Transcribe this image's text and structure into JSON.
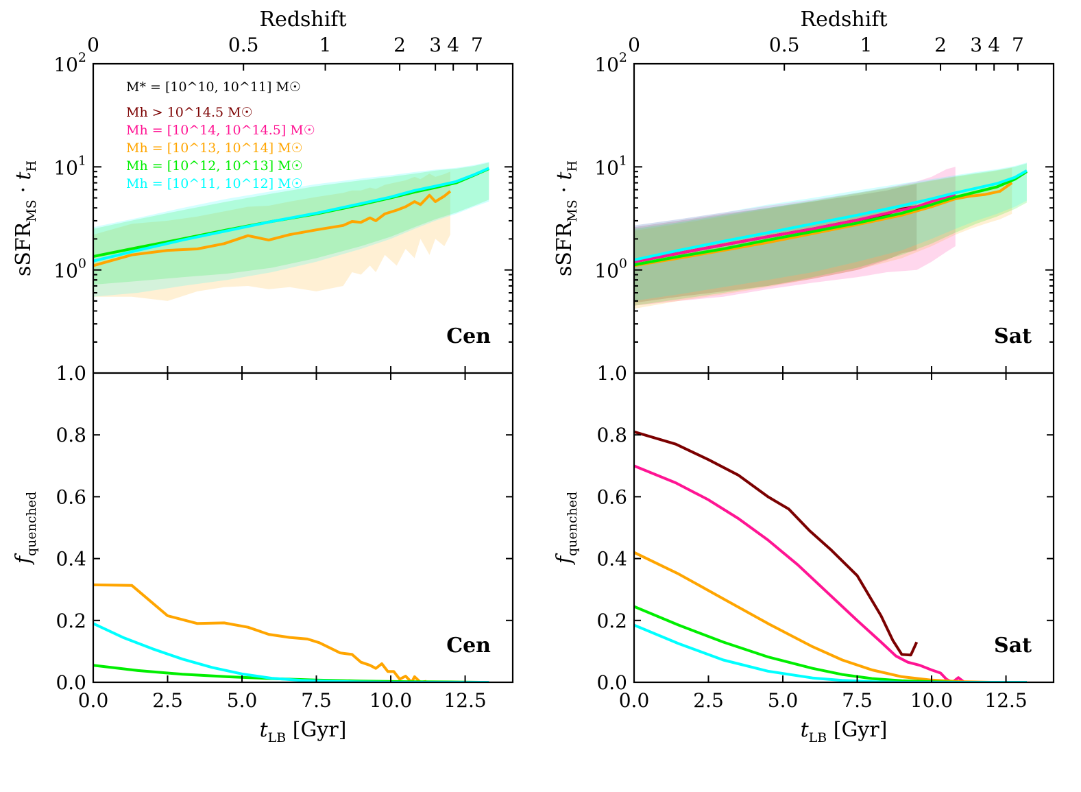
{
  "figure": {
    "top_axis_title": "Redshift",
    "redshift_ticks": [
      {
        "z": 0,
        "label": "0"
      },
      {
        "z": 0.5,
        "label": "0.5"
      },
      {
        "z": 1,
        "label": "1"
      },
      {
        "z": 2,
        "label": "2"
      },
      {
        "z": 3,
        "label": "3"
      },
      {
        "z": 4,
        "label": "4"
      },
      {
        "z": 7,
        "label": "7"
      }
    ],
    "upper_y_label": "sSFR",
    "upper_y_label_sub": "MS",
    "upper_y_label_dot": "·",
    "upper_y_label_t": "t",
    "upper_y_label_t_sub": "H",
    "upper_y_ticks": [
      {
        "base": "10",
        "exp": "2",
        "value": 100
      },
      {
        "base": "10",
        "exp": "1",
        "value": 10
      },
      {
        "base": "10",
        "exp": "0",
        "value": 1
      }
    ],
    "lower_y_label": "f",
    "lower_y_label_sub": "quenched",
    "lower_y_ticks": [
      "0.0",
      "0.2",
      "0.4",
      "0.6",
      "0.8",
      "1.0"
    ],
    "x_label": "t",
    "x_label_sub": "LB",
    "x_label_unit": " [Gyr]",
    "x_ticks": [
      "0.0",
      "2.5",
      "5.0",
      "7.5",
      "10.0",
      "12.5"
    ],
    "panels": [
      "Cen",
      "Sat"
    ]
  },
  "legend": {
    "stellar": "M* = [10^10, 10^11] M☉",
    "entries": [
      {
        "label": "Mh > 10^14.5 M☉",
        "color": "#7b0000"
      },
      {
        "label": "Mh = [10^14, 10^14.5] M☉",
        "color": "#ff1493"
      },
      {
        "label": "Mh = [10^13, 10^14] M☉",
        "color": "#ffa500"
      },
      {
        "label": "Mh = [10^12, 10^13] M☉",
        "color": "#00ee00"
      },
      {
        "label": "Mh = [10^11, 10^12] M☉",
        "color": "#00ffff"
      }
    ]
  },
  "chart_data": [
    {
      "type": "line",
      "panel": "Cen",
      "row": "sSFR",
      "title": "Cen",
      "xlabel": "t_LB [Gyr]",
      "ylabel": "sSFR_MS · t_H",
      "xlim": [
        0,
        14.1
      ],
      "ylim": [
        0.1,
        100
      ],
      "yscale": "log",
      "series": [
        {
          "name": "Mh = [10^13, 10^14] M☉",
          "color": "#ffa500",
          "x": [
            0,
            1.3,
            2.5,
            3.5,
            4.4,
            5.2,
            5.9,
            6.6,
            7.5,
            8.4,
            8.7,
            9.0,
            9.3,
            9.5,
            9.8,
            10.2,
            10.5,
            10.8,
            11.0,
            11.3,
            11.5,
            11.8,
            12.0
          ],
          "y": [
            1.1,
            1.4,
            1.55,
            1.6,
            1.8,
            2.15,
            1.95,
            2.2,
            2.45,
            2.7,
            2.95,
            2.9,
            3.2,
            3.0,
            3.5,
            3.8,
            4.1,
            4.6,
            4.3,
            5.3,
            4.6,
            5.2,
            5.8
          ],
          "band_low": [
            0.55,
            0.55,
            0.5,
            0.62,
            0.68,
            0.7,
            0.65,
            0.68,
            0.62,
            0.7,
            0.95,
            0.9,
            1.1,
            0.95,
            1.4,
            1.1,
            1.6,
            1.3,
            2.0,
            1.4,
            2.0,
            1.7,
            2.2
          ],
          "band_high": [
            2.2,
            2.8,
            3.0,
            3.3,
            3.7,
            4.1,
            4.2,
            4.6,
            5.1,
            5.6,
            5.9,
            5.9,
            6.3,
            6.1,
            6.7,
            7.1,
            7.4,
            8.0,
            7.6,
            8.6,
            8.0,
            8.5,
            9.0
          ]
        },
        {
          "name": "Mh = [10^12, 10^13] M☉",
          "color": "#00ee00",
          "x": [
            0,
            1.5,
            3.0,
            4.5,
            6.0,
            7.5,
            9.0,
            10.0,
            10.8,
            11.5,
            12.2,
            12.8,
            13.3
          ],
          "y": [
            1.35,
            1.65,
            2.0,
            2.45,
            2.95,
            3.5,
            4.3,
            5.0,
            5.7,
            6.3,
            7.0,
            8.3,
            9.6
          ],
          "band_low": [
            0.72,
            0.78,
            0.85,
            0.92,
            1.05,
            1.3,
            1.7,
            2.1,
            2.6,
            3.1,
            3.6,
            4.2,
            4.8
          ],
          "band_high": [
            2.5,
            3.1,
            3.8,
            4.6,
            5.5,
            6.5,
            7.4,
            8.0,
            8.6,
            9.2,
            9.6,
            10.2,
            11.0
          ]
        },
        {
          "name": "Mh = [10^11, 10^12] M☉",
          "color": "#00ffff",
          "x": [
            0,
            1.5,
            3.0,
            4.5,
            6.0,
            7.5,
            9.0,
            10.0,
            10.8,
            11.5,
            12.2,
            12.8,
            13.3
          ],
          "y": [
            1.22,
            1.55,
            1.95,
            2.4,
            2.95,
            3.55,
            4.4,
            5.1,
            5.9,
            6.5,
            7.2,
            8.4,
            9.7
          ],
          "band_low": [
            0.55,
            0.6,
            0.7,
            0.8,
            0.95,
            1.2,
            1.6,
            2.0,
            2.5,
            3.0,
            3.5,
            4.1,
            4.6
          ],
          "band_high": [
            2.6,
            3.2,
            4.0,
            4.9,
            5.8,
            6.8,
            7.7,
            8.3,
            8.9,
            9.4,
            9.8,
            10.4,
            11.2
          ]
        }
      ]
    },
    {
      "type": "line",
      "panel": "Sat",
      "row": "sSFR",
      "title": "Sat",
      "xlabel": "t_LB [Gyr]",
      "ylabel": "sSFR_MS · t_H",
      "xlim": [
        0,
        14.1
      ],
      "ylim": [
        0.1,
        100
      ],
      "yscale": "log",
      "series": [
        {
          "name": "Mh > 10^14.5 M☉",
          "color": "#7b0000",
          "x": [
            0,
            1.5,
            3.0,
            4.5,
            6.0,
            7.5,
            8.5,
            9.0,
            9.5
          ],
          "y": [
            1.2,
            1.45,
            1.75,
            2.1,
            2.5,
            3.05,
            3.5,
            3.9,
            4.1
          ],
          "band_low": [
            0.48,
            0.55,
            0.62,
            0.7,
            0.82,
            1.0,
            1.25,
            1.45,
            1.55
          ],
          "band_high": [
            2.6,
            3.0,
            3.5,
            4.0,
            4.6,
            5.3,
            5.9,
            6.4,
            6.8
          ]
        },
        {
          "name": "Mh = [10^14, 10^14.5] M☉",
          "color": "#ff1493",
          "x": [
            0,
            1.5,
            3.0,
            4.5,
            6.0,
            7.5,
            8.5,
            9.5,
            10.0,
            10.5,
            10.8
          ],
          "y": [
            1.2,
            1.45,
            1.75,
            2.1,
            2.5,
            3.05,
            3.55,
            4.1,
            4.6,
            5.1,
            5.4
          ],
          "band_low": [
            0.45,
            0.5,
            0.55,
            0.65,
            0.75,
            0.85,
            0.95,
            1.0,
            1.2,
            1.5,
            1.7
          ],
          "band_high": [
            2.7,
            3.1,
            3.6,
            4.2,
            4.8,
            5.6,
            6.3,
            7.2,
            8.0,
            9.5,
            10.0
          ]
        },
        {
          "name": "Mh = [10^13, 10^14] M☉",
          "color": "#ffa500",
          "x": [
            0,
            1.5,
            3.0,
            4.5,
            6.0,
            7.5,
            9.0,
            10.0,
            10.8,
            11.3,
            11.8,
            12.3,
            12.7
          ],
          "y": [
            1.1,
            1.3,
            1.55,
            1.85,
            2.25,
            2.75,
            3.4,
            4.1,
            4.9,
            5.2,
            5.4,
            5.8,
            7.0
          ],
          "band_low": [
            0.42,
            0.5,
            0.58,
            0.68,
            0.82,
            1.0,
            1.3,
            1.7,
            2.2,
            2.5,
            2.8,
            3.1,
            3.5
          ],
          "band_high": [
            2.4,
            2.8,
            3.3,
            3.9,
            4.6,
            5.5,
            6.5,
            7.3,
            8.0,
            8.4,
            8.8,
            9.3,
            9.8
          ]
        },
        {
          "name": "Mh = [10^12, 10^13] M☉",
          "color": "#00ee00",
          "x": [
            0,
            1.5,
            3.0,
            4.5,
            6.0,
            7.5,
            9.0,
            10.0,
            10.8,
            11.5,
            12.2,
            12.8,
            13.2
          ],
          "y": [
            1.12,
            1.35,
            1.6,
            1.95,
            2.35,
            2.85,
            3.55,
            4.3,
            5.1,
            5.7,
            6.4,
            7.6,
            9.0
          ],
          "band_low": [
            0.45,
            0.52,
            0.6,
            0.7,
            0.85,
            1.05,
            1.4,
            1.8,
            2.3,
            2.8,
            3.3,
            3.9,
            4.5
          ],
          "band_high": [
            2.5,
            2.9,
            3.4,
            4.0,
            4.7,
            5.6,
            6.6,
            7.4,
            8.1,
            8.7,
            9.3,
            10.0,
            10.8
          ]
        },
        {
          "name": "Mh = [10^11, 10^12] M☉",
          "color": "#00ffff",
          "x": [
            0,
            1.5,
            3.0,
            4.5,
            6.0,
            7.5,
            9.0,
            10.0,
            10.8,
            11.5,
            12.2,
            12.8,
            13.2
          ],
          "y": [
            1.25,
            1.55,
            1.9,
            2.3,
            2.8,
            3.4,
            4.2,
            4.9,
            5.6,
            6.2,
            6.9,
            7.9,
            9.2
          ],
          "band_low": [
            0.5,
            0.58,
            0.68,
            0.8,
            0.95,
            1.2,
            1.55,
            2.0,
            2.5,
            3.0,
            3.5,
            4.1,
            4.7
          ],
          "band_high": [
            2.7,
            3.1,
            3.6,
            4.3,
            5.0,
            5.9,
            6.9,
            7.6,
            8.3,
            8.9,
            9.5,
            10.2,
            11.0
          ]
        }
      ]
    },
    {
      "type": "line",
      "panel": "Cen",
      "row": "fquenched",
      "title": "Cen",
      "xlabel": "t_LB [Gyr]",
      "ylabel": "f_quenched",
      "xlim": [
        0,
        14.1
      ],
      "ylim": [
        0,
        1.0
      ],
      "series": [
        {
          "name": "Mh = [10^13, 10^14] M☉",
          "color": "#ffa500",
          "x": [
            0,
            1.3,
            2.5,
            3.5,
            4.4,
            5.2,
            5.9,
            6.6,
            7.2,
            7.6,
            8.3,
            8.7,
            9.0,
            9.3,
            9.5,
            9.7,
            9.9,
            10.1,
            10.3,
            10.5,
            10.7,
            10.8,
            11.0,
            11.2
          ],
          "y": [
            0.315,
            0.313,
            0.215,
            0.19,
            0.192,
            0.178,
            0.155,
            0.145,
            0.14,
            0.128,
            0.095,
            0.09,
            0.065,
            0.055,
            0.045,
            0.06,
            0.035,
            0.035,
            0.01,
            0.02,
            0.0,
            0.018,
            0.0,
            0.003
          ]
        },
        {
          "name": "Mh = [10^12, 10^13] M☉",
          "color": "#00ee00",
          "x": [
            0,
            1.5,
            3.0,
            4.5,
            6.0,
            7.5,
            9.0,
            10.5,
            12.0,
            13.0
          ],
          "y": [
            0.055,
            0.038,
            0.026,
            0.018,
            0.012,
            0.007,
            0.004,
            0.002,
            0.001,
            0.0
          ]
        },
        {
          "name": "Mh = [10^11, 10^12] M☉",
          "color": "#00ffff",
          "x": [
            0,
            1.0,
            2.0,
            3.0,
            4.0,
            5.0,
            6.0,
            7.0,
            8.0,
            9.0,
            10.0,
            11.0,
            12.0,
            13.3
          ],
          "y": [
            0.19,
            0.145,
            0.108,
            0.075,
            0.048,
            0.027,
            0.013,
            0.006,
            0.003,
            0.001,
            0.0,
            0.0,
            0.0,
            0.0
          ]
        }
      ]
    },
    {
      "type": "line",
      "panel": "Sat",
      "row": "fquenched",
      "title": "Sat",
      "xlabel": "t_LB [Gyr]",
      "ylabel": "f_quenched",
      "xlim": [
        0,
        14.1
      ],
      "ylim": [
        0,
        1.0
      ],
      "series": [
        {
          "name": "Mh > 10^14.5 M☉",
          "color": "#7b0000",
          "x": [
            0,
            1.4,
            2.5,
            3.5,
            4.5,
            5.2,
            5.9,
            6.6,
            7.5,
            8.3,
            8.7,
            9.0,
            9.3,
            9.5
          ],
          "y": [
            0.81,
            0.77,
            0.72,
            0.67,
            0.6,
            0.56,
            0.49,
            0.43,
            0.345,
            0.215,
            0.135,
            0.09,
            0.088,
            0.13
          ]
        },
        {
          "name": "Mh = [10^14, 10^14.5] M☉",
          "color": "#ff1493",
          "x": [
            0,
            1.4,
            2.5,
            3.5,
            4.5,
            5.5,
            6.5,
            7.5,
            8.3,
            8.8,
            9.2,
            9.6,
            10.0,
            10.3,
            10.5,
            10.7,
            10.9,
            11.1
          ],
          "y": [
            0.7,
            0.645,
            0.59,
            0.53,
            0.46,
            0.38,
            0.29,
            0.2,
            0.13,
            0.085,
            0.065,
            0.055,
            0.04,
            0.03,
            0.01,
            0.0,
            0.015,
            0.0
          ]
        },
        {
          "name": "Mh = [10^13, 10^14] M☉",
          "color": "#ffa500",
          "x": [
            0,
            1.5,
            3.0,
            4.5,
            6.0,
            7.0,
            8.0,
            9.0,
            10.0,
            11.0,
            12.0
          ],
          "y": [
            0.42,
            0.35,
            0.27,
            0.19,
            0.115,
            0.072,
            0.04,
            0.018,
            0.007,
            0.002,
            0.0
          ]
        },
        {
          "name": "Mh = [10^12, 10^13] M☉",
          "color": "#00ee00",
          "x": [
            0,
            1.5,
            3.0,
            4.5,
            6.0,
            7.0,
            8.0,
            9.0,
            10.0,
            11.0,
            12.0,
            13.2
          ],
          "y": [
            0.245,
            0.185,
            0.13,
            0.082,
            0.045,
            0.025,
            0.012,
            0.005,
            0.002,
            0.0,
            0.0,
            0.0
          ]
        },
        {
          "name": "Mh = [10^11, 10^12] M☉",
          "color": "#00ffff",
          "x": [
            0,
            1.5,
            3.0,
            4.5,
            6.0,
            7.0,
            8.0,
            9.0,
            10.0,
            11.0,
            12.0,
            13.2
          ],
          "y": [
            0.185,
            0.125,
            0.072,
            0.036,
            0.014,
            0.006,
            0.002,
            0.0,
            0.0,
            0.0,
            0.0,
            0.0
          ]
        }
      ]
    }
  ]
}
